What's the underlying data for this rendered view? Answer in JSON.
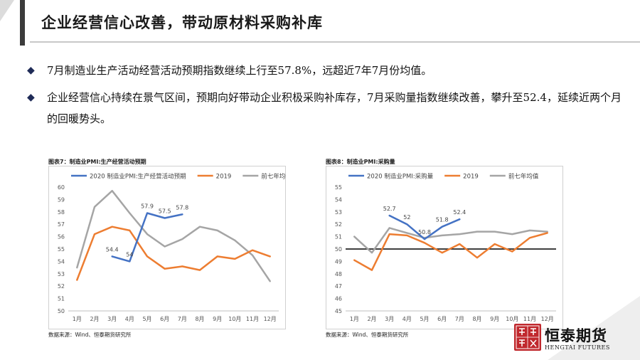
{
  "title": "企业经营信心改善，带动原材料采购补库",
  "bullets": [
    "7月制造业生产活动经营活动预期指数继续上行至57.8%，远超近7年7月份均值。",
    "企业经营信心持续在景气区间，预期向好带动企业积极采购补库存，7月采购量指数继续改善，攀升至52.4，延续近两个月的回暖势头。"
  ],
  "bullet_icon": "diamond-bullet-icon",
  "logo": {
    "name": "恒泰期货",
    "english": "HENGTAI FUTURES",
    "seal": "恒泰 證券"
  },
  "colors": {
    "series_2020": "#4472c4",
    "series_2019": "#ed7d31",
    "series_avg": "#a5a5a5",
    "accent": "#1f2b57"
  },
  "chart_data": [
    {
      "type": "line",
      "caption": "图表7：制造业PMI:生产经营活动预期",
      "source": "数据来源：Wind、恒泰期货研究所",
      "categories": [
        "1月",
        "2月",
        "3月",
        "4月",
        "5月",
        "6月",
        "7月",
        "8月",
        "9月",
        "10月",
        "11月",
        "12月"
      ],
      "ylim": [
        50,
        60
      ],
      "yticks": [
        50,
        51,
        52,
        53,
        54,
        55,
        56,
        57,
        58,
        59,
        60
      ],
      "grid": false,
      "legend": "top",
      "series": [
        {
          "name": "2020 制造业PMI:生产经营活动预期",
          "color": "#4472c4",
          "values": [
            null,
            null,
            54.4,
            54.0,
            57.9,
            57.5,
            57.8,
            null,
            null,
            null,
            null,
            null
          ]
        },
        {
          "name": "2019",
          "color": "#ed7d31",
          "values": [
            52.5,
            56.2,
            56.8,
            56.5,
            54.4,
            53.4,
            53.6,
            53.3,
            54.4,
            54.2,
            54.9,
            54.4
          ]
        },
        {
          "name": "前七年均值",
          "color": "#a5a5a5",
          "values": [
            53.5,
            58.4,
            59.7,
            57.9,
            56.2,
            55.2,
            55.8,
            56.8,
            56.5,
            55.7,
            54.5,
            52.4
          ]
        }
      ],
      "data_labels": [
        {
          "text": "54.4",
          "x": "3月",
          "y": 54.4
        },
        {
          "text": "54",
          "x": "4月",
          "y": 54.0
        },
        {
          "text": "57.9",
          "x": "5月",
          "y": 57.9
        },
        {
          "text": "57.5",
          "x": "6月",
          "y": 57.5
        },
        {
          "text": "57.8",
          "x": "7月",
          "y": 57.8
        }
      ]
    },
    {
      "type": "line",
      "caption": "图表8：制造业PMI:采购量",
      "source": "数据来源：Wind、恒泰期货研究所",
      "categories": [
        "1月",
        "2月",
        "3月",
        "4月",
        "5月",
        "6月",
        "7月",
        "8月",
        "9月",
        "10月",
        "11月",
        "12月"
      ],
      "ylim": [
        45,
        55
      ],
      "yticks": [
        45,
        46,
        47,
        48,
        49,
        50,
        51,
        52,
        53,
        54,
        55
      ],
      "grid": false,
      "legend": "top",
      "reference_line": 50,
      "series": [
        {
          "name": "2020 制造业PMI:采购量",
          "color": "#4472c4",
          "values": [
            null,
            null,
            52.7,
            52.0,
            50.8,
            51.8,
            52.4,
            null,
            null,
            null,
            null,
            null
          ]
        },
        {
          "name": "2019",
          "color": "#ed7d31",
          "values": [
            49.1,
            48.3,
            51.2,
            51.1,
            50.5,
            49.7,
            50.4,
            49.3,
            50.4,
            49.8,
            50.9,
            51.3
          ]
        },
        {
          "name": "前七年均值",
          "color": "#a5a5a5",
          "values": [
            51.0,
            49.7,
            51.7,
            51.3,
            50.9,
            51.1,
            51.2,
            51.4,
            51.4,
            51.2,
            51.5,
            51.4
          ]
        }
      ],
      "data_labels": [
        {
          "text": "52.7",
          "x": "3月",
          "y": 52.7
        },
        {
          "text": "52",
          "x": "4月",
          "y": 52.0
        },
        {
          "text": "50.8",
          "x": "5月",
          "y": 50.8
        },
        {
          "text": "51.8",
          "x": "6月",
          "y": 51.8
        },
        {
          "text": "52.4",
          "x": "7月",
          "y": 52.4
        }
      ]
    }
  ]
}
